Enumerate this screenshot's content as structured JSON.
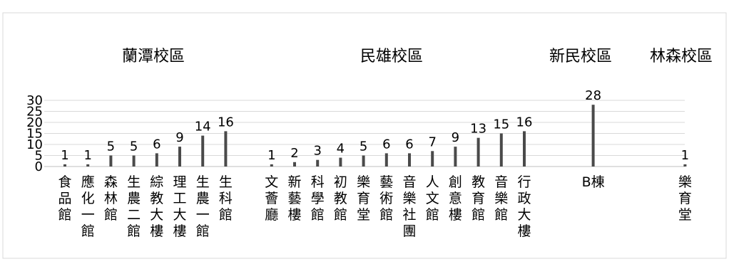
{
  "chart_data": {
    "type": "bar",
    "title": "",
    "xlabel": "",
    "ylabel": "",
    "ylim": [
      0,
      30
    ],
    "yticks": [
      0,
      5,
      10,
      15,
      20,
      25,
      30
    ],
    "grid": true,
    "legend": "none",
    "bar_color": "#4a4a4a",
    "campuses": [
      "蘭潭校區",
      "民雄校區",
      "新民校區",
      "林森校區"
    ],
    "categories": [
      "食品館",
      "應化一館",
      "森林館",
      "生農二館",
      "綜教大樓",
      "理工大樓",
      "生農一館",
      "生科館",
      "",
      "文薈廳",
      "新藝樓",
      "科學館",
      "初教館",
      "樂育堂",
      "藝術館",
      "音樂社團",
      "人文館",
      "創意樓",
      "教育館",
      "音樂館",
      "行政大樓",
      "",
      "",
      "B棟",
      "",
      "",
      "",
      "樂育堂"
    ],
    "values": [
      1,
      1,
      5,
      5,
      6,
      9,
      14,
      16,
      null,
      1,
      2,
      3,
      4,
      5,
      6,
      6,
      7,
      9,
      13,
      15,
      16,
      null,
      null,
      28,
      null,
      null,
      null,
      1
    ]
  }
}
